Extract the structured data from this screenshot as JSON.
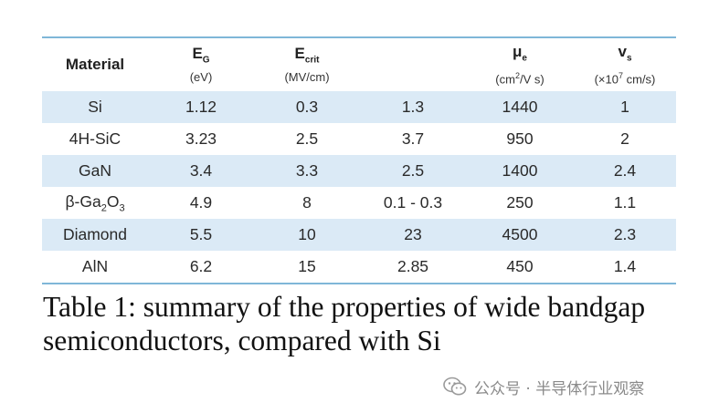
{
  "table": {
    "headers": [
      {
        "symbol": "Material",
        "sub": "",
        "unit": ""
      },
      {
        "symbol": "E",
        "sub": "G",
        "unit": "(eV)"
      },
      {
        "symbol": "E",
        "sub": "crit",
        "unit": "(MV/cm)"
      },
      {
        "symbol": "",
        "sub": "",
        "unit": ""
      },
      {
        "symbol": "μ",
        "sub": "e",
        "unit_pre": "(cm",
        "unit_sup": "2",
        "unit_post": "/V s)"
      },
      {
        "symbol": "v",
        "sub": "s",
        "unit_pre": "(×10",
        "unit_sup": "7",
        "unit_post": " cm/s)"
      }
    ],
    "rows": [
      {
        "material": "Si",
        "material_parts": [
          "Si"
        ],
        "eg": "1.12",
        "ecrit": "0.3",
        "x": "1.3",
        "mu": "1440",
        "vs": "1"
      },
      {
        "material": "4H-SiC",
        "material_parts": [
          "4H-SiC"
        ],
        "eg": "3.23",
        "ecrit": "2.5",
        "x": "3.7",
        "mu": "950",
        "vs": "2"
      },
      {
        "material": "GaN",
        "material_parts": [
          "GaN"
        ],
        "eg": "3.4",
        "ecrit": "3.3",
        "x": "2.5",
        "mu": "1400",
        "vs": "2.4"
      },
      {
        "material": "β-Ga2O3",
        "material_parts": [
          "β-Ga",
          "2",
          "O",
          "3"
        ],
        "eg": "4.9",
        "ecrit": "8",
        "x": "0.1 - 0.3",
        "mu": "250",
        "vs": "1.1"
      },
      {
        "material": "Diamond",
        "material_parts": [
          "Diamond"
        ],
        "eg": "5.5",
        "ecrit": "10",
        "x": "23",
        "mu": "4500",
        "vs": "2.3"
      },
      {
        "material": "AlN",
        "material_parts": [
          "AlN"
        ],
        "eg": "6.2",
        "ecrit": "15",
        "x": "2.85",
        "mu": "450",
        "vs": "1.4"
      }
    ]
  },
  "caption": "Table 1: summary of the properties of wide bandgap semiconductors, compared with Si",
  "watermark": {
    "text": "公众号 · 半导体行业观察",
    "icon": "wechat-icon"
  },
  "colors": {
    "rule": "#7fb7d8",
    "row_shade": "#dbeaf6",
    "text": "#222222",
    "watermark": "#8a8a8a"
  }
}
